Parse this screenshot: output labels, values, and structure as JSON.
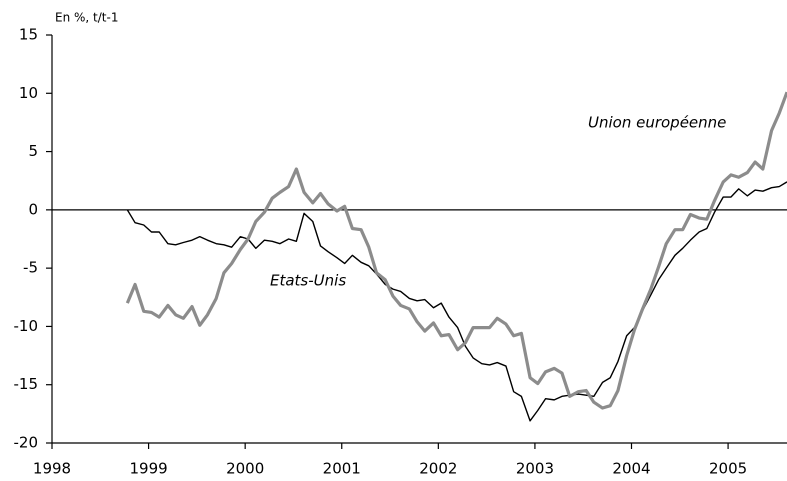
{
  "chart_data": {
    "type": "line",
    "ylabel": "En %, t/t-1",
    "x": [
      1998.78,
      1998.86,
      1998.95,
      1999.03,
      1999.11,
      1999.2,
      1999.28,
      1999.36,
      1999.45,
      1999.53,
      1999.61,
      1999.7,
      1999.78,
      1999.86,
      1999.95,
      2000.03,
      2000.11,
      2000.2,
      2000.28,
      2000.36,
      2000.45,
      2000.53,
      2000.61,
      2000.7,
      2000.78,
      2000.86,
      2000.95,
      2001.03,
      2001.11,
      2001.2,
      2001.28,
      2001.36,
      2001.45,
      2001.53,
      2001.61,
      2001.7,
      2001.78,
      2001.86,
      2001.95,
      2002.03,
      2002.11,
      2002.2,
      2002.28,
      2002.36,
      2002.45,
      2002.53,
      2002.61,
      2002.7,
      2002.78,
      2002.86,
      2002.95,
      2003.03,
      2003.11,
      2003.2,
      2003.28,
      2003.36,
      2003.45,
      2003.53,
      2003.61,
      2003.7,
      2003.78,
      2003.86,
      2003.95,
      2004.03,
      2004.11,
      2004.2,
      2004.28,
      2004.36,
      2004.45,
      2004.53,
      2004.61,
      2004.7,
      2004.78,
      2004.86,
      2004.95,
      2005.03,
      2005.11,
      2005.2,
      2005.28,
      2005.36,
      2005.45,
      2005.53,
      2005.61
    ],
    "series": [
      {
        "name": "Etats-Unis",
        "color": "#000000",
        "width": 1.4,
        "values": [
          0,
          -1.1,
          -1.3,
          -1.9,
          -1.9,
          -2.9,
          -3.0,
          -2.8,
          -2.6,
          -2.3,
          -2.6,
          -2.9,
          -3.0,
          -3.2,
          -2.3,
          -2.5,
          -3.3,
          -2.6,
          -2.7,
          -2.9,
          -2.5,
          -2.7,
          -0.3,
          -1.0,
          -3.1,
          -3.6,
          -4.1,
          -4.6,
          -3.9,
          -4.5,
          -4.8,
          -5.5,
          -6.4,
          -6.8,
          -7.0,
          -7.6,
          -7.8,
          -7.7,
          -8.4,
          -8.0,
          -9.2,
          -10.1,
          -11.7,
          -12.7,
          -13.2,
          -13.3,
          -13.1,
          -13.4,
          -15.6,
          -16.0,
          -18.1,
          -17.2,
          -16.2,
          -16.3,
          -16.0,
          -15.9,
          -15.8,
          -15.9,
          -16.0,
          -14.8,
          -14.4,
          -13.0,
          -10.8,
          -10.1,
          -8.7,
          -7.3,
          -6.0,
          -5.0,
          -3.9,
          -3.3,
          -2.6,
          -1.9,
          -1.6,
          -0.2,
          1.1,
          1.1,
          1.8,
          1.2,
          1.7,
          1.6,
          1.9,
          2.0,
          2.4
        ]
      },
      {
        "name": "Union européenne",
        "color": "#8c8c8c",
        "width": 3.2,
        "values": [
          -8.0,
          -6.4,
          -8.7,
          -8.8,
          -9.2,
          -8.2,
          -9.0,
          -9.3,
          -8.3,
          -9.9,
          -9.0,
          -7.6,
          -5.4,
          -4.6,
          -3.4,
          -2.5,
          -1.0,
          -0.2,
          1.0,
          1.5,
          2.0,
          3.5,
          1.5,
          0.6,
          1.4,
          0.5,
          -0.1,
          0.3,
          -1.6,
          -1.7,
          -3.2,
          -5.4,
          -6.0,
          -7.4,
          -8.2,
          -8.5,
          -9.6,
          -10.4,
          -9.7,
          -10.8,
          -10.7,
          -12.0,
          -11.4,
          -10.1,
          -10.1,
          -10.1,
          -9.3,
          -9.8,
          -10.8,
          -10.6,
          -14.4,
          -14.9,
          -13.9,
          -13.6,
          -14.0,
          -16.0,
          -15.6,
          -15.5,
          -16.5,
          -17.0,
          -16.8,
          -15.5,
          -12.5,
          -10.3,
          -8.6,
          -6.8,
          -4.9,
          -2.9,
          -1.7,
          -1.7,
          -0.4,
          -0.7,
          -0.8,
          0.8,
          2.4,
          3.0,
          2.8,
          3.2,
          4.1,
          3.5,
          6.8,
          8.3,
          10.1
        ]
      }
    ],
    "xlim": [
      1998,
      2005.61
    ],
    "xticks": [
      1998,
      1999,
      2000,
      2001,
      2002,
      2003,
      2004,
      2005
    ],
    "ylim": [
      -20,
      15
    ],
    "yticks": [
      15,
      10,
      5,
      0,
      -5,
      -10,
      -15,
      -20
    ],
    "zero_line": true
  }
}
